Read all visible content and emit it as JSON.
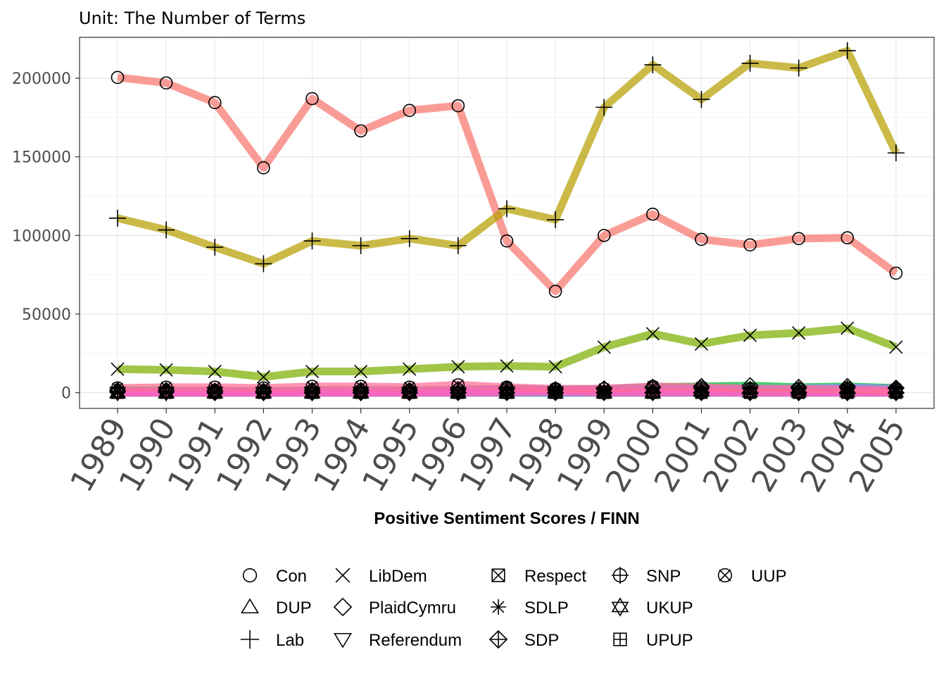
{
  "chart_data": {
    "type": "line",
    "subtitle": "Unit: The Number of Terms",
    "xlabel": "Positive Sentiment Scores / FINN",
    "ylabel": "",
    "x": [
      "1989",
      "1990",
      "1991",
      "1992",
      "1993",
      "1994",
      "1995",
      "1996",
      "1997",
      "1998",
      "1999",
      "2000",
      "2001",
      "2002",
      "2003",
      "2004",
      "2005"
    ],
    "ylim": [
      -10000,
      226000
    ],
    "yticks": [
      0,
      50000,
      100000,
      150000,
      200000
    ],
    "ytick_labels": [
      "0",
      "50000",
      "100000",
      "150000",
      "200000"
    ],
    "grid": true,
    "legend_position": "bottom",
    "series": [
      {
        "name": "Con",
        "color": "#F8766D",
        "shape": "circle",
        "values": [
          200500,
          197000,
          184500,
          143000,
          187000,
          166500,
          179500,
          182500,
          96500,
          64500,
          100000,
          113500,
          97500,
          94000,
          98000,
          98500,
          76000
        ]
      },
      {
        "name": "DUP",
        "color": "#DE8C00",
        "shape": "triangle",
        "values": [
          0,
          0,
          0,
          0,
          0,
          0,
          0,
          0,
          0,
          0,
          0,
          0,
          1500,
          2500,
          2000,
          2500,
          3000
        ]
      },
      {
        "name": "Lab",
        "color": "#B79F00",
        "shape": "plus",
        "values": [
          111000,
          103500,
          92500,
          82000,
          96500,
          93500,
          98000,
          93500,
          117000,
          110000,
          181500,
          208500,
          186500,
          209500,
          206500,
          217500,
          152500
        ]
      },
      {
        "name": "LibDem",
        "color": "#7CAE00",
        "shape": "cross",
        "values": [
          15000,
          14500,
          13500,
          10000,
          13500,
          13500,
          15000,
          16500,
          17000,
          16500,
          29000,
          37500,
          31000,
          36500,
          38000,
          41000,
          29000
        ]
      },
      {
        "name": "PlaidCymru",
        "color": "#00BA38",
        "shape": "diamond",
        "values": [
          1500,
          1500,
          1000,
          1000,
          1500,
          1500,
          1500,
          2000,
          2500,
          2000,
          2500,
          3500,
          4000,
          4500,
          3500,
          4000,
          3000
        ]
      },
      {
        "name": "Referendum",
        "color": "#00C08B",
        "shape": "triangle-down",
        "values": [
          0,
          0,
          0,
          0,
          0,
          0,
          0,
          0,
          0,
          0,
          0,
          0,
          0,
          0,
          0,
          0,
          0
        ]
      },
      {
        "name": "Respect",
        "color": "#00BFC4",
        "shape": "square-cross",
        "values": [
          0,
          0,
          0,
          0,
          0,
          0,
          0,
          0,
          0,
          0,
          0,
          0,
          0,
          0,
          0,
          0,
          500
        ]
      },
      {
        "name": "SDLP",
        "color": "#00B4F0",
        "shape": "asterisk",
        "values": [
          500,
          500,
          500,
          500,
          500,
          500,
          500,
          1000,
          1500,
          1000,
          1500,
          2500,
          2000,
          2500,
          2500,
          3000,
          2500
        ]
      },
      {
        "name": "SDP",
        "color": "#619CFF",
        "shape": "diamond-plus",
        "values": [
          500,
          500,
          0,
          0,
          0,
          0,
          0,
          0,
          0,
          0,
          0,
          0,
          0,
          0,
          0,
          0,
          0
        ]
      },
      {
        "name": "SNP",
        "color": "#C77CFF",
        "shape": "circle-plus",
        "values": [
          1000,
          1000,
          1500,
          1000,
          1500,
          1500,
          1500,
          2000,
          2500,
          2000,
          2500,
          3000,
          2500,
          2500,
          2500,
          3000,
          2500
        ]
      },
      {
        "name": "UKUP",
        "color": "#F564E3",
        "shape": "star-of-david",
        "values": [
          0,
          0,
          0,
          0,
          0,
          0,
          0,
          500,
          1000,
          1000,
          500,
          500,
          500,
          0,
          0,
          0,
          0
        ]
      },
      {
        "name": "UPUP",
        "color": "#FF64B0",
        "shape": "square-plus",
        "values": [
          0,
          0,
          0,
          0,
          0,
          0,
          0,
          0,
          0,
          500,
          0,
          0,
          0,
          0,
          0,
          0,
          0
        ]
      },
      {
        "name": "UUP",
        "color": "#FF6C91",
        "shape": "circle-cross",
        "values": [
          3000,
          3500,
          3500,
          3000,
          4000,
          4000,
          3500,
          5000,
          3500,
          2500,
          2500,
          4000,
          3500,
          2500,
          2500,
          2000,
          1500
        ]
      }
    ]
  }
}
